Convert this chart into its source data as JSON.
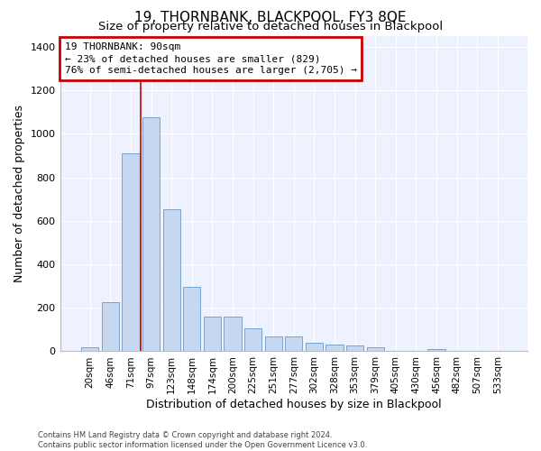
{
  "title": "19, THORNBANK, BLACKPOOL, FY3 8QE",
  "subtitle": "Size of property relative to detached houses in Blackpool",
  "xlabel": "Distribution of detached houses by size in Blackpool",
  "ylabel": "Number of detached properties",
  "categories": [
    "20sqm",
    "46sqm",
    "71sqm",
    "97sqm",
    "123sqm",
    "148sqm",
    "174sqm",
    "200sqm",
    "225sqm",
    "251sqm",
    "277sqm",
    "302sqm",
    "328sqm",
    "353sqm",
    "379sqm",
    "405sqm",
    "430sqm",
    "456sqm",
    "482sqm",
    "507sqm",
    "533sqm"
  ],
  "bar_values": [
    20,
    225,
    910,
    1075,
    655,
    295,
    160,
    160,
    105,
    70,
    70,
    40,
    30,
    25,
    20,
    0,
    0,
    10,
    0,
    0,
    0
  ],
  "bar_color": "#c5d8ef",
  "bar_edge_color": "#6699cc",
  "vline_position": 2.5,
  "vline_color": "#cc0000",
  "annotation_line1": "19 THORNBANK: 90sqm",
  "annotation_line2": "← 23% of detached houses are smaller (829)",
  "annotation_line3": "76% of semi-detached houses are larger (2,705) →",
  "annotation_box_facecolor": "#ffffff",
  "annotation_box_edgecolor": "#cc0000",
  "ylim_max": 1450,
  "bg_color": "#eef2ff",
  "grid_color": "#ffffff",
  "footer": "Contains HM Land Registry data © Crown copyright and database right 2024.\nContains public sector information licensed under the Open Government Licence v3.0."
}
